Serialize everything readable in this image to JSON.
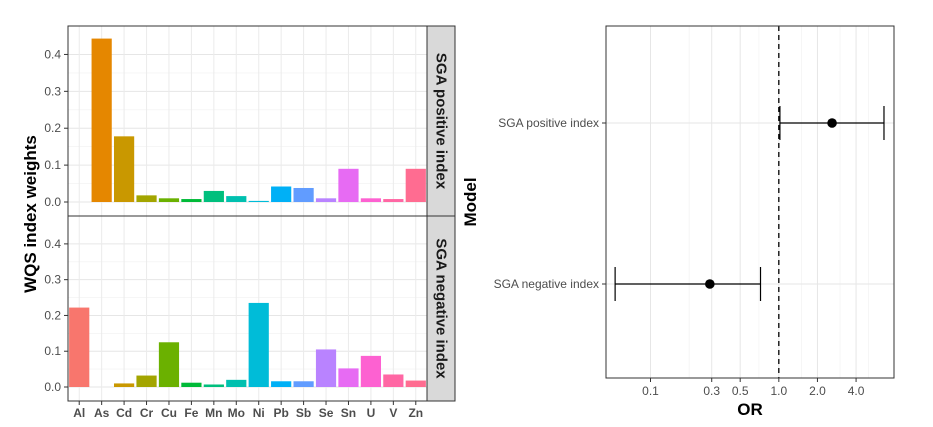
{
  "chart_data": [
    {
      "type": "bar",
      "title": "",
      "ylabel": "WQS index weights",
      "xlabel": "",
      "categories": [
        "Al",
        "As",
        "Cd",
        "Cr",
        "Cu",
        "Fe",
        "Mn",
        "Mo",
        "Ni",
        "Pb",
        "Sb",
        "Se",
        "Sn",
        "U",
        "V",
        "Zn"
      ],
      "colors": [
        "#F8766D",
        "#E58700",
        "#C99800",
        "#A3A500",
        "#6BB100",
        "#00BA38",
        "#00BF7D",
        "#00C0AF",
        "#00BCD8",
        "#00B0F6",
        "#619CFF",
        "#B983FF",
        "#E76BF3",
        "#FD61D1",
        "#FF67A4",
        "#FF6C91"
      ],
      "ylim": [
        0,
        0.45
      ],
      "yticks": [
        0.0,
        0.1,
        0.2,
        0.3,
        0.4
      ],
      "ytick_labels": [
        "0.0",
        "0.1",
        "0.2",
        "0.3",
        "0.4"
      ],
      "grid": true,
      "panels": [
        {
          "strip": "SGA positive index",
          "values": [
            0.0,
            0.443,
            0.178,
            0.018,
            0.01,
            0.008,
            0.03,
            0.016,
            0.003,
            0.042,
            0.038,
            0.01,
            0.09,
            0.01,
            0.008,
            0.09
          ]
        },
        {
          "strip": "SGA negative index",
          "values": [
            0.222,
            0.0,
            0.01,
            0.032,
            0.125,
            0.012,
            0.007,
            0.02,
            0.235,
            0.016,
            0.016,
            0.105,
            0.052,
            0.087,
            0.035,
            0.018
          ]
        }
      ]
    },
    {
      "type": "forest",
      "title": "",
      "xlabel": "OR",
      "ylabel": "Model",
      "x_scale": "log",
      "xlim": [
        0.045,
        7.9
      ],
      "xticks": [
        0.1,
        0.3,
        0.5,
        1.0,
        2.0,
        4.0
      ],
      "xtick_labels": [
        "0.1",
        "0.3",
        "0.5",
        "1.0",
        "2.0",
        "4.0"
      ],
      "reference_line": 1.0,
      "grid": true,
      "rows": [
        {
          "label": "SGA positive index",
          "estimate": 2.6,
          "lower": 1.02,
          "upper": 6.6
        },
        {
          "label": "SGA negative index",
          "estimate": 0.29,
          "lower": 0.053,
          "upper": 0.72
        }
      ]
    }
  ]
}
